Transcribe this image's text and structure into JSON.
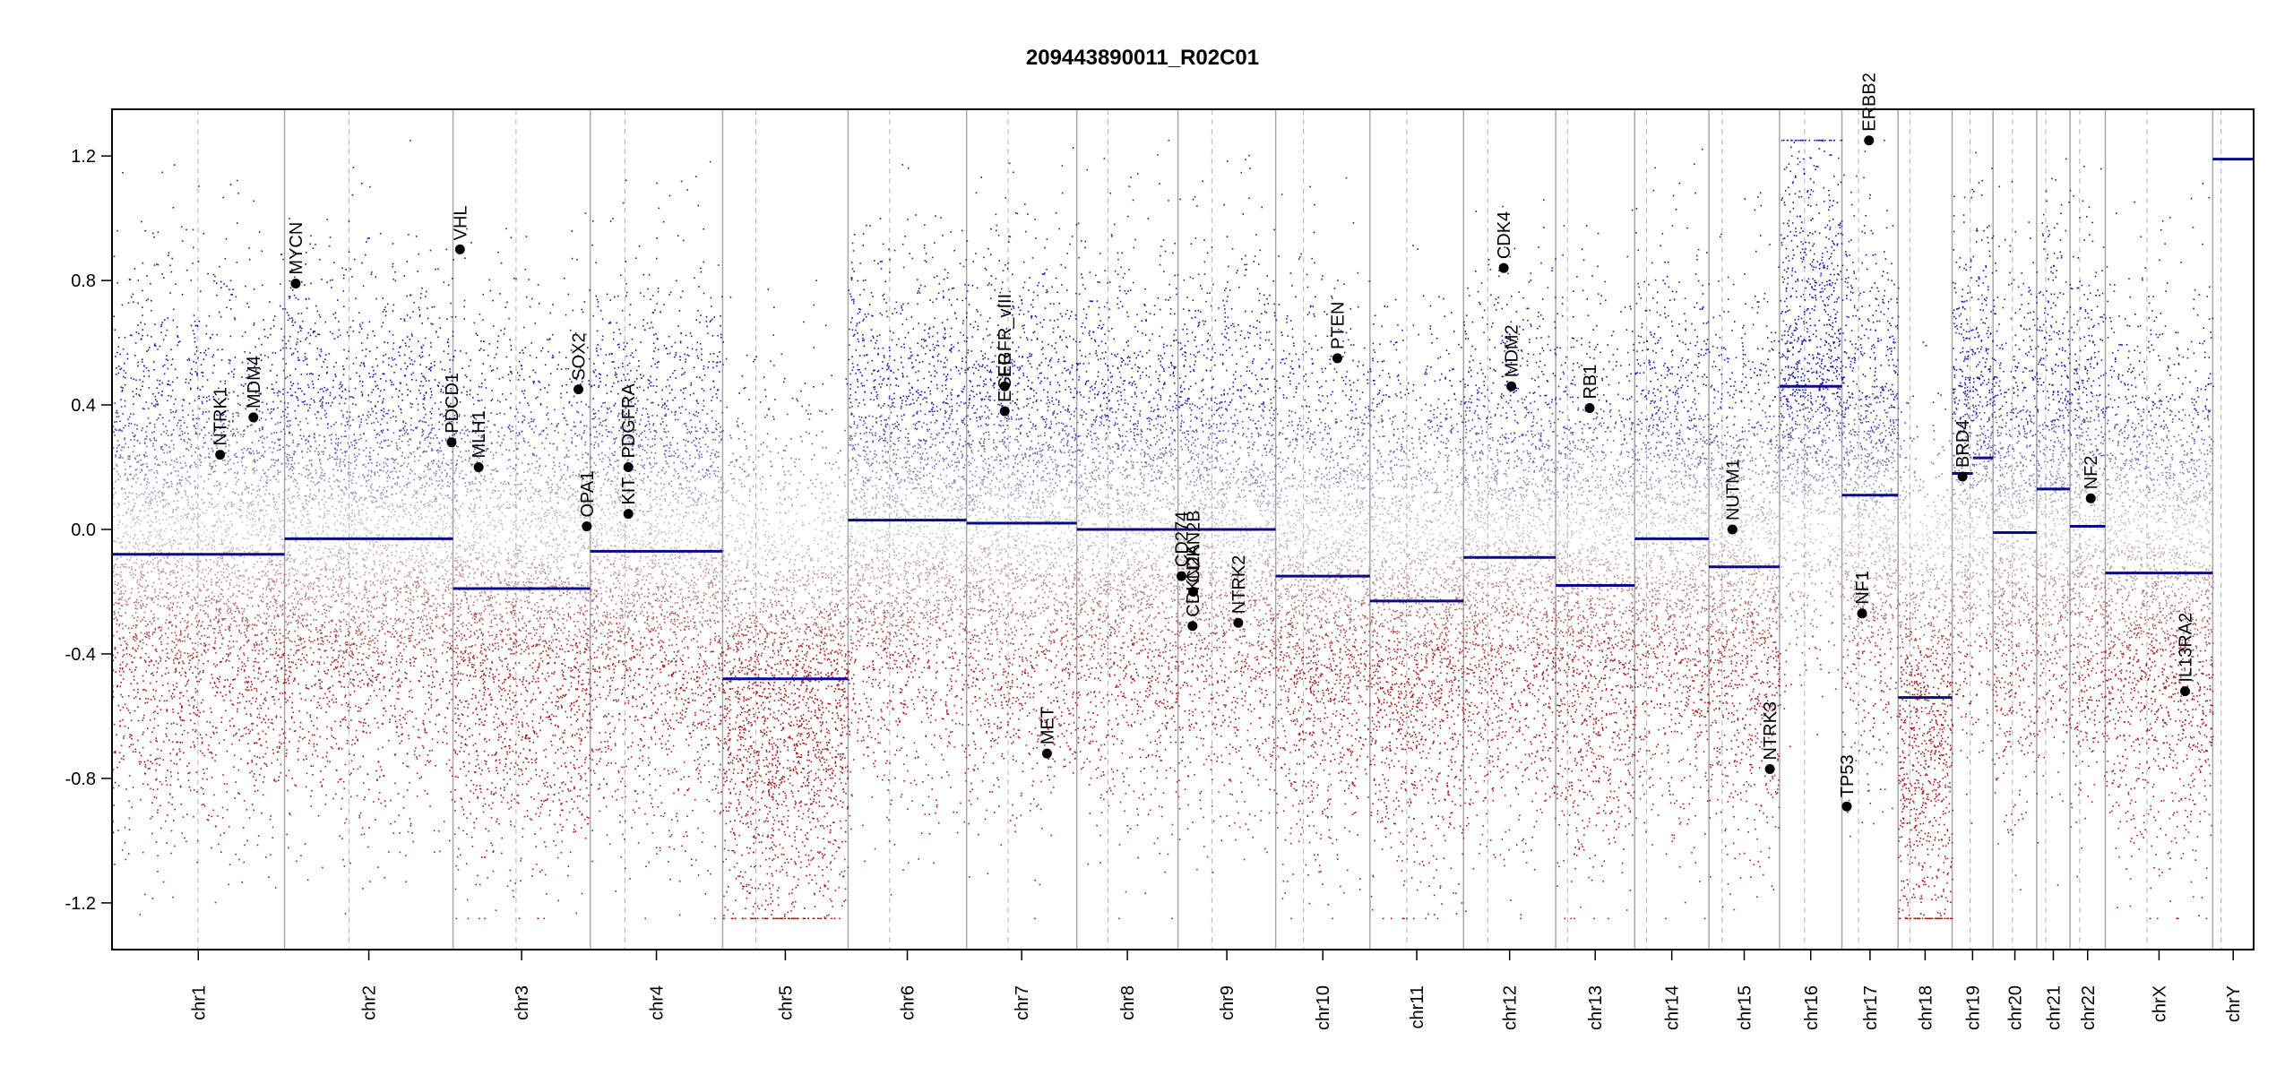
{
  "chart_data": {
    "type": "scatter",
    "title": "209443890011_R02C01",
    "xlabel": "",
    "ylabel": "",
    "ylim": [
      -1.35,
      1.35
    ],
    "y_ticks": [
      1.2,
      0.8,
      0.4,
      0.0,
      -0.4,
      -0.8,
      -1.2
    ],
    "y_tick_labels": [
      "1.2",
      "0.8",
      "0.4",
      "0.0",
      "-0.4",
      "-0.8",
      "-1.2"
    ],
    "grid": false,
    "x_units": "Mb (cumulative genome position)",
    "chromosomes": [
      {
        "name": "chr1",
        "length": 249,
        "centromere": 124
      },
      {
        "name": "chr2",
        "length": 243,
        "centromere": 93
      },
      {
        "name": "chr3",
        "length": 198,
        "centromere": 91
      },
      {
        "name": "chr4",
        "length": 191,
        "centromere": 50
      },
      {
        "name": "chr5",
        "length": 181,
        "centromere": 48
      },
      {
        "name": "chr6",
        "length": 171,
        "centromere": 60
      },
      {
        "name": "chr7",
        "length": 159,
        "centromere": 60
      },
      {
        "name": "chr8",
        "length": 146,
        "centromere": 45
      },
      {
        "name": "chr9",
        "length": 141,
        "centromere": 49
      },
      {
        "name": "chr10",
        "length": 136,
        "centromere": 40
      },
      {
        "name": "chr11",
        "length": 135,
        "centromere": 53
      },
      {
        "name": "chr12",
        "length": 133,
        "centromere": 35
      },
      {
        "name": "chr13",
        "length": 114,
        "centromere": 17
      },
      {
        "name": "chr14",
        "length": 107,
        "centromere": 17
      },
      {
        "name": "chr15",
        "length": 102,
        "centromere": 19
      },
      {
        "name": "chr16",
        "length": 90,
        "centromere": 36
      },
      {
        "name": "chr17",
        "length": 81,
        "centromere": 24
      },
      {
        "name": "chr18",
        "length": 78,
        "centromere": 17
      },
      {
        "name": "chr19",
        "length": 59,
        "centromere": 26
      },
      {
        "name": "chr20",
        "length": 63,
        "centromere": 28
      },
      {
        "name": "chr21",
        "length": 48,
        "centromere": 13
      },
      {
        "name": "chr22",
        "length": 51,
        "centromere": 14
      },
      {
        "name": "chrX",
        "length": 155,
        "centromere": 60
      },
      {
        "name": "chrY",
        "length": 59,
        "centromere": 12
      }
    ],
    "segments": [
      {
        "chrom": "chr1",
        "start": 0,
        "end": 249,
        "value": -0.08
      },
      {
        "chrom": "chr2",
        "start": 0,
        "end": 243,
        "value": -0.03
      },
      {
        "chrom": "chr3",
        "start": 0,
        "end": 198,
        "value": -0.19
      },
      {
        "chrom": "chr4",
        "start": 0,
        "end": 191,
        "value": -0.07
      },
      {
        "chrom": "chr5",
        "start": 0,
        "end": 181,
        "value": -0.48
      },
      {
        "chrom": "chr6",
        "start": 0,
        "end": 171,
        "value": 0.03
      },
      {
        "chrom": "chr7",
        "start": 0,
        "end": 159,
        "value": 0.02
      },
      {
        "chrom": "chr8",
        "start": 0,
        "end": 146,
        "value": 0.0
      },
      {
        "chrom": "chr9",
        "start": 0,
        "end": 141,
        "value": 0.0
      },
      {
        "chrom": "chr10",
        "start": 0,
        "end": 136,
        "value": -0.15
      },
      {
        "chrom": "chr11",
        "start": 0,
        "end": 135,
        "value": -0.23
      },
      {
        "chrom": "chr12",
        "start": 0,
        "end": 133,
        "value": -0.09
      },
      {
        "chrom": "chr13",
        "start": 0,
        "end": 114,
        "value": -0.18
      },
      {
        "chrom": "chr14",
        "start": 0,
        "end": 107,
        "value": -0.03
      },
      {
        "chrom": "chr15",
        "start": 0,
        "end": 102,
        "value": -0.12
      },
      {
        "chrom": "chr16",
        "start": 0,
        "end": 90,
        "value": 0.46
      },
      {
        "chrom": "chr17",
        "start": 0,
        "end": 81,
        "value": 0.11
      },
      {
        "chrom": "chr18",
        "start": 0,
        "end": 78,
        "value": -0.54
      },
      {
        "chrom": "chr19",
        "start": 0,
        "end": 30,
        "value": 0.18
      },
      {
        "chrom": "chr19",
        "start": 30,
        "end": 59,
        "value": 0.23
      },
      {
        "chrom": "chr20",
        "start": 0,
        "end": 63,
        "value": -0.01
      },
      {
        "chrom": "chr21",
        "start": 0,
        "end": 48,
        "value": 0.13
      },
      {
        "chrom": "chr22",
        "start": 0,
        "end": 51,
        "value": 0.01
      },
      {
        "chrom": "chrX",
        "start": 0,
        "end": 155,
        "value": -0.14
      },
      {
        "chrom": "chrY",
        "start": 0,
        "end": 59,
        "value": 1.19
      }
    ],
    "genes": [
      {
        "name": "NTRK1",
        "chrom": "chr1",
        "pos": 156,
        "value": 0.24
      },
      {
        "name": "MDM4",
        "chrom": "chr1",
        "pos": 204,
        "value": 0.36
      },
      {
        "name": "MYCN",
        "chrom": "chr2",
        "pos": 16,
        "value": 0.79
      },
      {
        "name": "PDCD1",
        "chrom": "chr2",
        "pos": 241,
        "value": 0.28
      },
      {
        "name": "VHL",
        "chrom": "chr3",
        "pos": 10,
        "value": 0.9
      },
      {
        "name": "MLH1",
        "chrom": "chr3",
        "pos": 37,
        "value": 0.2
      },
      {
        "name": "SOX2",
        "chrom": "chr3",
        "pos": 181,
        "value": 0.45
      },
      {
        "name": "OPA1",
        "chrom": "chr3",
        "pos": 193,
        "value": 0.01
      },
      {
        "name": "KIT",
        "chrom": "chr4",
        "pos": 55,
        "value": 0.05
      },
      {
        "name": "PDGFRA",
        "chrom": "chr4",
        "pos": 55,
        "value": 0.2
      },
      {
        "name": "EGFR",
        "chrom": "chr7",
        "pos": 55,
        "value": 0.38
      },
      {
        "name": "EGFR_vIII",
        "chrom": "chr7",
        "pos": 55,
        "value": 0.46
      },
      {
        "name": "MET",
        "chrom": "chr7",
        "pos": 116,
        "value": -0.72
      },
      {
        "name": "CDKN2A",
        "chrom": "chr9",
        "pos": 21,
        "value": -0.31
      },
      {
        "name": "CDKN2B",
        "chrom": "chr9",
        "pos": 22,
        "value": -0.2
      },
      {
        "name": "CD274",
        "chrom": "chr9",
        "pos": 5,
        "value": -0.15
      },
      {
        "name": "NTRK2",
        "chrom": "chr9",
        "pos": 87,
        "value": -0.3
      },
      {
        "name": "PTEN",
        "chrom": "chr10",
        "pos": 89,
        "value": 0.55
      },
      {
        "name": "CDK4",
        "chrom": "chr12",
        "pos": 58,
        "value": 0.84
      },
      {
        "name": "MDM2",
        "chrom": "chr12",
        "pos": 69,
        "value": 0.46
      },
      {
        "name": "RB1",
        "chrom": "chr13",
        "pos": 49,
        "value": 0.39
      },
      {
        "name": "NUTM1",
        "chrom": "chr15",
        "pos": 34,
        "value": 0.0
      },
      {
        "name": "NTRK3",
        "chrom": "chr15",
        "pos": 88,
        "value": -0.77
      },
      {
        "name": "TP53",
        "chrom": "chr17",
        "pos": 7,
        "value": -0.89
      },
      {
        "name": "NF1",
        "chrom": "chr17",
        "pos": 29,
        "value": -0.27
      },
      {
        "name": "ERBB2",
        "chrom": "chr17",
        "pos": 39,
        "value": 1.25
      },
      {
        "name": "BRD4",
        "chrom": "chr19",
        "pos": 15,
        "value": 0.17
      },
      {
        "name": "NF2",
        "chrom": "chr22",
        "pos": 30,
        "value": 0.1
      },
      {
        "name": "IL13RA2",
        "chrom": "chrX",
        "pos": 115,
        "value": -0.52
      }
    ],
    "colors": {
      "gain": "#1a1aa6",
      "loss": "#a61a1a",
      "neutral": "#c8c8c8",
      "segment": "#0a0a8a",
      "boundary": "#a8a8a8",
      "centromere": "#c0c0c0",
      "gene_marker": "#000000"
    }
  }
}
